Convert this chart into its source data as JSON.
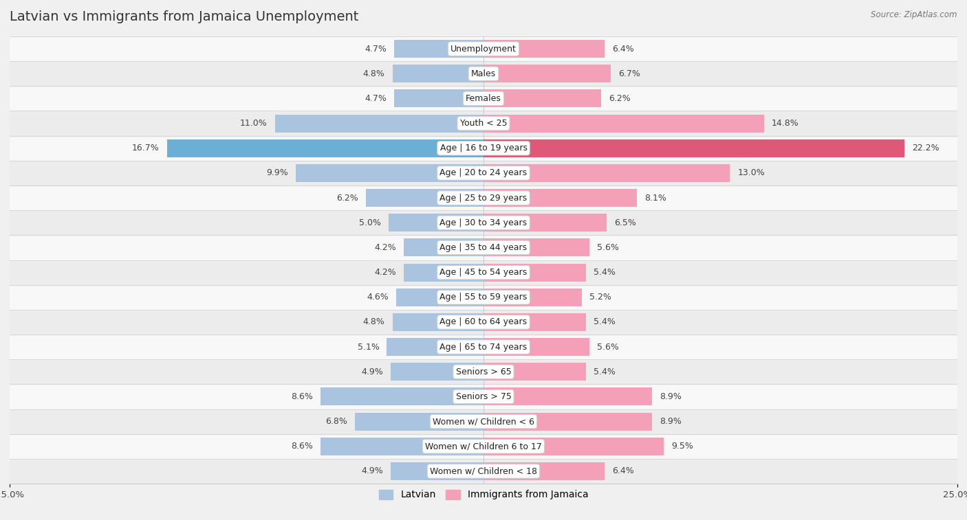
{
  "title": "Latvian vs Immigrants from Jamaica Unemployment",
  "source": "Source: ZipAtlas.com",
  "categories": [
    "Unemployment",
    "Males",
    "Females",
    "Youth < 25",
    "Age | 16 to 19 years",
    "Age | 20 to 24 years",
    "Age | 25 to 29 years",
    "Age | 30 to 34 years",
    "Age | 35 to 44 years",
    "Age | 45 to 54 years",
    "Age | 55 to 59 years",
    "Age | 60 to 64 years",
    "Age | 65 to 74 years",
    "Seniors > 65",
    "Seniors > 75",
    "Women w/ Children < 6",
    "Women w/ Children 6 to 17",
    "Women w/ Children < 18"
  ],
  "latvian": [
    4.7,
    4.8,
    4.7,
    11.0,
    16.7,
    9.9,
    6.2,
    5.0,
    4.2,
    4.2,
    4.6,
    4.8,
    5.1,
    4.9,
    8.6,
    6.8,
    8.6,
    4.9
  ],
  "jamaica": [
    6.4,
    6.7,
    6.2,
    14.8,
    22.2,
    13.0,
    8.1,
    6.5,
    5.6,
    5.4,
    5.2,
    5.4,
    5.6,
    5.4,
    8.9,
    8.9,
    9.5,
    6.4
  ],
  "latvian_color": "#aac4e0",
  "latvian_highlight_color": "#6baed6",
  "jamaica_color": "#f4a0b8",
  "jamaica_highlight_color": "#e05878",
  "bg_odd": "#ececec",
  "bg_even": "#f8f8f8",
  "separator_color": "#d8d8d8",
  "axis_max": 25.0,
  "legend_latvian": "Latvian",
  "legend_jamaica": "Immigrants from Jamaica",
  "title_fontsize": 14,
  "label_fontsize": 9,
  "value_fontsize": 9
}
